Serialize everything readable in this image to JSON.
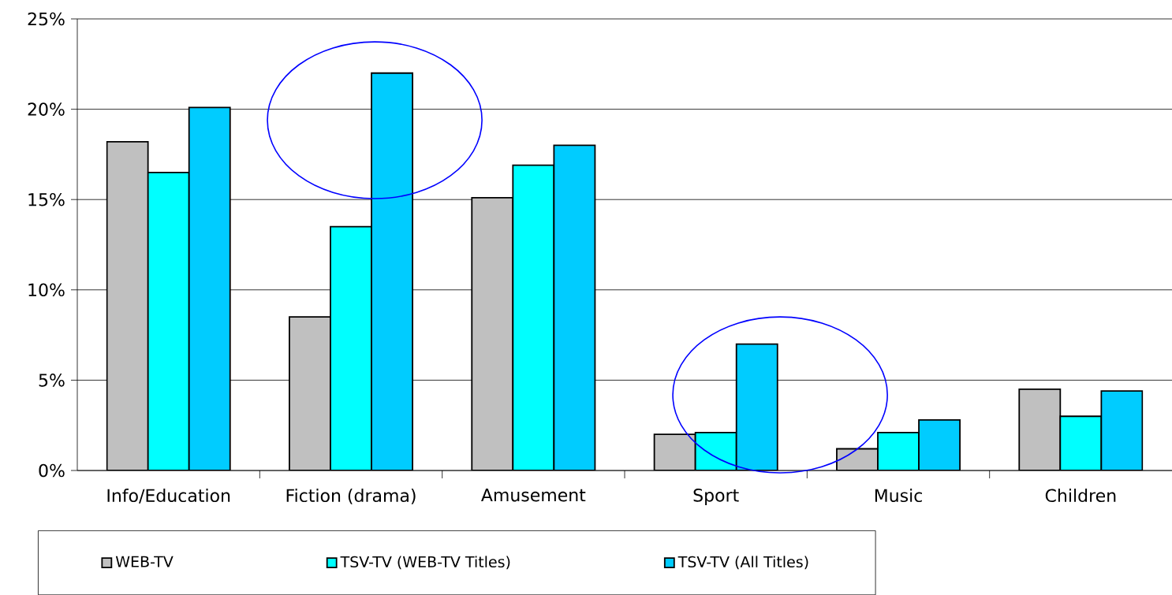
{
  "chart_data": {
    "type": "bar",
    "categories": [
      "Info/Education",
      "Fiction (drama)",
      "Amusement",
      "Sport",
      "Music",
      "Children"
    ],
    "series": [
      {
        "name": "WEB-TV",
        "color": "#c0c0c0",
        "values": [
          18.2,
          8.5,
          15.1,
          2.0,
          1.2,
          4.5
        ]
      },
      {
        "name": "TSV-TV (WEB-TV Titles)",
        "color": "#00ffff",
        "values": [
          16.5,
          13.5,
          16.9,
          2.1,
          2.1,
          3.0
        ]
      },
      {
        "name": "TSV-TV (All Titles)",
        "color": "#00ccff",
        "values": [
          20.1,
          22.0,
          18.0,
          7.0,
          2.8,
          4.4
        ]
      }
    ],
    "ylim": [
      0,
      25
    ],
    "yticks": [
      {
        "value": 0,
        "label": "0%"
      },
      {
        "value": 5,
        "label": "5%"
      },
      {
        "value": 10,
        "label": "10%"
      },
      {
        "value": 15,
        "label": "15%"
      },
      {
        "value": 20,
        "label": "20%"
      },
      {
        "value": 25,
        "label": "25%"
      }
    ],
    "grid": "y",
    "legend": "bottom"
  }
}
